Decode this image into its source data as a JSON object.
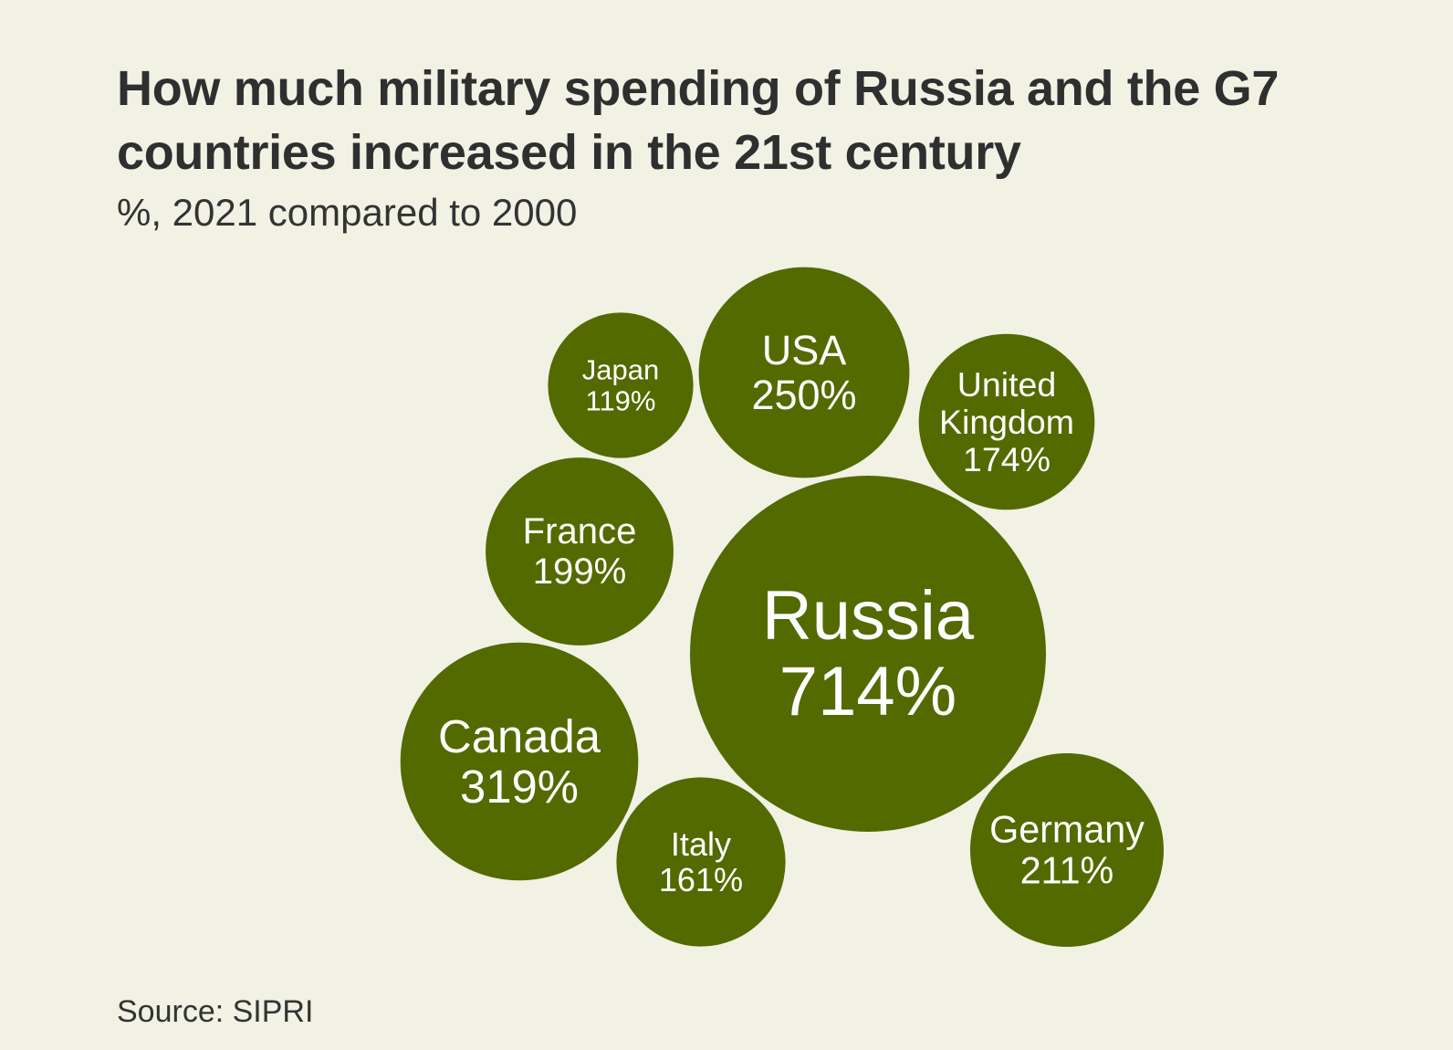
{
  "header": {
    "title_line1": "How much military spending of Russia and the G7",
    "title_line2": "countries increased in the 21st century",
    "subtitle": "%, 2021 compared to 2000"
  },
  "footer": {
    "source": "Source: SIPRI"
  },
  "colors": {
    "background": "#f1f1e4",
    "bubble": "#536a00",
    "label": "#ffffff",
    "text": "#333333"
  },
  "chart_data": {
    "type": "bubble",
    "title": "How much military spending of Russia and the G7 countries increased in the 21st century",
    "subtitle": "%, 2021 compared to 2000",
    "unit": "%",
    "series": [
      {
        "name": "Russia",
        "name_lines": [
          "Russia"
        ],
        "value": 714,
        "label": "714%"
      },
      {
        "name": "Canada",
        "name_lines": [
          "Canada"
        ],
        "value": 319,
        "label": "319%"
      },
      {
        "name": "USA",
        "name_lines": [
          "USA"
        ],
        "value": 250,
        "label": "250%"
      },
      {
        "name": "Germany",
        "name_lines": [
          "Germany"
        ],
        "value": 211,
        "label": "211%"
      },
      {
        "name": "France",
        "name_lines": [
          "France"
        ],
        "value": 199,
        "label": "199%"
      },
      {
        "name": "United Kingdom",
        "name_lines": [
          "United",
          "Kingdom"
        ],
        "value": 174,
        "label": "174%"
      },
      {
        "name": "Italy",
        "name_lines": [
          "Italy"
        ],
        "value": 161,
        "label": "161%"
      },
      {
        "name": "Japan",
        "name_lines": [
          "Japan"
        ],
        "value": 119,
        "label": "119%"
      }
    ]
  }
}
